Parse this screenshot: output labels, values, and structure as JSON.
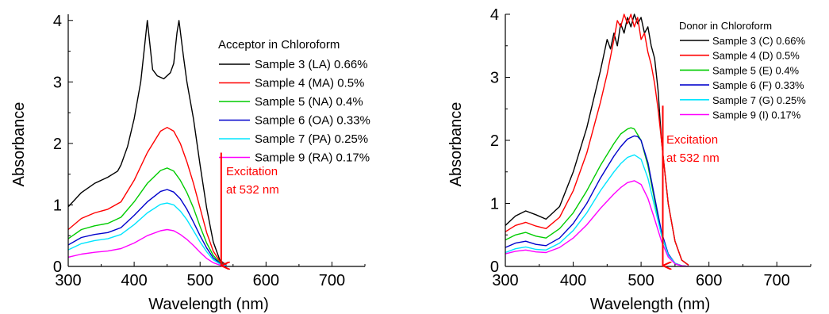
{
  "chart_data": [
    {
      "type": "line",
      "title": "",
      "xlabel": "Wavelength (nm)",
      "ylabel": "Absorbance",
      "xlim": [
        300,
        750
      ],
      "ylim": [
        0,
        4.1
      ],
      "xticks": [
        300,
        400,
        500,
        600,
        700
      ],
      "yticks": [
        0,
        1,
        2,
        3,
        4
      ],
      "grid": false,
      "legend_title": "Acceptor in Chloroform",
      "legend_position": "top-right",
      "series": [
        {
          "name": "Sample 3 (LA) 0.66%",
          "color": "#000000",
          "x": [
            300,
            320,
            340,
            360,
            375,
            380,
            390,
            400,
            410,
            415,
            420,
            423,
            428,
            435,
            445,
            455,
            460,
            465,
            468,
            475,
            480,
            490,
            500,
            510,
            520,
            530,
            540
          ],
          "y": [
            0.97,
            1.2,
            1.35,
            1.45,
            1.55,
            1.65,
            1.95,
            2.4,
            3.0,
            3.5,
            4.0,
            3.7,
            3.2,
            3.1,
            3.05,
            3.15,
            3.3,
            3.8,
            4.0,
            3.4,
            3.0,
            2.4,
            1.65,
            0.95,
            0.4,
            0.1,
            0.02
          ]
        },
        {
          "name": "Sample 4 (MA) 0.5%",
          "color": "#ff0000",
          "x": [
            300,
            320,
            340,
            360,
            380,
            400,
            420,
            440,
            450,
            460,
            470,
            480,
            490,
            500,
            510,
            520,
            530,
            540
          ],
          "y": [
            0.6,
            0.78,
            0.87,
            0.93,
            1.05,
            1.4,
            1.85,
            2.2,
            2.26,
            2.2,
            2.0,
            1.7,
            1.35,
            0.95,
            0.55,
            0.25,
            0.08,
            0.02
          ]
        },
        {
          "name": "Sample 5 (NA) 0.4%",
          "color": "#00cc00",
          "x": [
            300,
            320,
            340,
            360,
            380,
            400,
            420,
            440,
            450,
            460,
            470,
            480,
            490,
            500,
            510,
            520,
            530,
            540
          ],
          "y": [
            0.45,
            0.6,
            0.66,
            0.7,
            0.8,
            1.05,
            1.35,
            1.56,
            1.6,
            1.55,
            1.4,
            1.2,
            0.95,
            0.65,
            0.38,
            0.18,
            0.06,
            0.01
          ]
        },
        {
          "name": "Sample 6 (OA) 0.33%",
          "color": "#0000cc",
          "x": [
            300,
            320,
            340,
            360,
            380,
            400,
            420,
            440,
            450,
            460,
            470,
            480,
            490,
            500,
            510,
            520,
            530,
            540
          ],
          "y": [
            0.35,
            0.47,
            0.52,
            0.55,
            0.63,
            0.83,
            1.05,
            1.22,
            1.25,
            1.21,
            1.1,
            0.93,
            0.72,
            0.5,
            0.3,
            0.14,
            0.05,
            0.01
          ]
        },
        {
          "name": "Sample 7 (PA) 0.25%",
          "color": "#00e5ff",
          "x": [
            300,
            320,
            340,
            360,
            380,
            400,
            420,
            440,
            450,
            460,
            470,
            480,
            490,
            500,
            510,
            520,
            530,
            540
          ],
          "y": [
            0.27,
            0.37,
            0.42,
            0.45,
            0.52,
            0.68,
            0.87,
            1.01,
            1.03,
            1.0,
            0.9,
            0.76,
            0.58,
            0.4,
            0.24,
            0.11,
            0.04,
            0.01
          ]
        },
        {
          "name": "Sample 9 (RA) 0.17%",
          "color": "#ff00ff",
          "x": [
            300,
            320,
            340,
            360,
            380,
            400,
            420,
            440,
            450,
            460,
            470,
            480,
            490,
            500,
            510,
            520,
            530,
            540
          ],
          "y": [
            0.15,
            0.2,
            0.23,
            0.25,
            0.29,
            0.38,
            0.5,
            0.58,
            0.6,
            0.58,
            0.52,
            0.44,
            0.34,
            0.23,
            0.13,
            0.06,
            0.02,
            0.0
          ]
        }
      ],
      "annotations": [
        {
          "text": "Excitation",
          "line2": "at 532 nm",
          "color": "#ff0000",
          "arrow_x": 532,
          "arrow_from_y": 1.85,
          "arrow_to_y": 0.0
        }
      ]
    },
    {
      "type": "line",
      "title": "",
      "xlabel": "Wavelength (nm)",
      "ylabel": "Absorbance",
      "xlim": [
        300,
        750
      ],
      "ylim": [
        0,
        4.0
      ],
      "xticks": [
        300,
        400,
        500,
        600,
        700
      ],
      "yticks": [
        0,
        1,
        2,
        3,
        4
      ],
      "grid": false,
      "legend_title": "Donor in Chloroform",
      "legend_position": "top-right",
      "series": [
        {
          "name": "Sample 3 (C) 0.66%",
          "color": "#000000",
          "x": [
            300,
            315,
            330,
            345,
            360,
            380,
            400,
            420,
            440,
            450,
            455,
            460,
            465,
            470,
            475,
            480,
            485,
            490,
            495,
            500,
            505,
            510,
            515,
            520,
            525,
            530,
            540,
            550,
            560,
            570
          ],
          "y": [
            0.65,
            0.8,
            0.88,
            0.82,
            0.75,
            0.95,
            1.5,
            2.2,
            3.1,
            3.6,
            3.45,
            3.7,
            3.5,
            3.85,
            3.7,
            3.95,
            3.8,
            4.0,
            3.85,
            3.95,
            3.7,
            3.8,
            3.5,
            3.3,
            2.8,
            2.0,
            1.0,
            0.4,
            0.1,
            0.02
          ]
        },
        {
          "name": "Sample 4 (D) 0.5%",
          "color": "#ff0000",
          "x": [
            300,
            315,
            330,
            345,
            360,
            380,
            400,
            420,
            440,
            450,
            460,
            465,
            470,
            475,
            480,
            485,
            490,
            495,
            500,
            505,
            510,
            515,
            520,
            525,
            530,
            540,
            550,
            560,
            570
          ],
          "y": [
            0.55,
            0.65,
            0.7,
            0.64,
            0.6,
            0.78,
            1.2,
            1.8,
            2.6,
            3.05,
            3.6,
            3.9,
            3.8,
            4.0,
            3.85,
            4.0,
            3.8,
            3.95,
            3.6,
            3.7,
            3.4,
            3.2,
            2.9,
            2.5,
            2.0,
            1.0,
            0.4,
            0.1,
            0.02
          ]
        },
        {
          "name": "Sample 5 (E) 0.4%",
          "color": "#00cc00",
          "x": [
            300,
            315,
            330,
            345,
            360,
            380,
            400,
            420,
            440,
            460,
            470,
            480,
            485,
            490,
            500,
            510,
            520,
            530,
            540,
            550,
            560,
            570
          ],
          "y": [
            0.42,
            0.5,
            0.54,
            0.48,
            0.45,
            0.6,
            0.85,
            1.2,
            1.6,
            1.95,
            2.1,
            2.18,
            2.2,
            2.18,
            2.0,
            1.6,
            1.05,
            0.5,
            0.18,
            0.05,
            0.01,
            0.0
          ]
        },
        {
          "name": "Sample 6 (F) 0.33%",
          "color": "#0000cc",
          "x": [
            300,
            315,
            330,
            345,
            360,
            380,
            400,
            420,
            440,
            460,
            470,
            480,
            490,
            495,
            500,
            510,
            520,
            530,
            540,
            550,
            560,
            570
          ],
          "y": [
            0.3,
            0.37,
            0.4,
            0.35,
            0.33,
            0.45,
            0.68,
            1.0,
            1.4,
            1.75,
            1.9,
            2.02,
            2.07,
            2.06,
            2.0,
            1.65,
            1.1,
            0.55,
            0.2,
            0.05,
            0.01,
            0.0
          ]
        },
        {
          "name": "Sample 7 (G) 0.25%",
          "color": "#00e5ff",
          "x": [
            300,
            315,
            330,
            345,
            360,
            380,
            400,
            420,
            440,
            460,
            470,
            480,
            490,
            500,
            510,
            520,
            530,
            540,
            550,
            560,
            570
          ],
          "y": [
            0.22,
            0.28,
            0.31,
            0.27,
            0.26,
            0.37,
            0.57,
            0.85,
            1.2,
            1.5,
            1.63,
            1.73,
            1.77,
            1.7,
            1.4,
            0.95,
            0.5,
            0.18,
            0.05,
            0.01,
            0.0
          ]
        },
        {
          "name": "Sample 9 (I) 0.17%",
          "color": "#ff00ff",
          "x": [
            300,
            315,
            330,
            345,
            360,
            380,
            400,
            420,
            440,
            460,
            470,
            480,
            490,
            500,
            510,
            520,
            530,
            540,
            550,
            560,
            570
          ],
          "y": [
            0.2,
            0.24,
            0.26,
            0.23,
            0.22,
            0.3,
            0.45,
            0.66,
            0.92,
            1.15,
            1.25,
            1.33,
            1.36,
            1.3,
            1.08,
            0.75,
            0.4,
            0.15,
            0.04,
            0.01,
            0.0
          ]
        }
      ],
      "annotations": [
        {
          "text": "Excitation",
          "line2": "at 532 nm",
          "color": "#ff0000",
          "arrow_x": 532,
          "arrow_from_y": 2.55,
          "arrow_to_y": 0.0
        }
      ]
    }
  ]
}
